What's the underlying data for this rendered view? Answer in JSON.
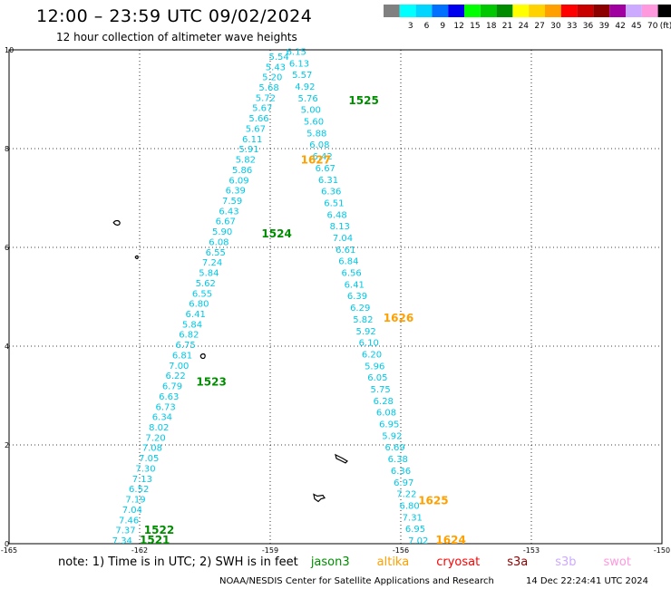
{
  "title": "12:00 – 23:59 UTC 09/02/2024",
  "subtitle": "12 hour collection of altimeter wave heights",
  "legend": {
    "swatches": [
      {
        "color": "#808080",
        "label": ""
      },
      {
        "color": "#00ffff",
        "label": "3"
      },
      {
        "color": "#00d5ff",
        "label": "6"
      },
      {
        "color": "#0070ff",
        "label": "9"
      },
      {
        "color": "#0000ee",
        "label": "12"
      },
      {
        "color": "#00ff00",
        "label": "15"
      },
      {
        "color": "#00c800",
        "label": "18"
      },
      {
        "color": "#008c00",
        "label": "21"
      },
      {
        "color": "#ffff00",
        "label": "24"
      },
      {
        "color": "#ffd200",
        "label": "27"
      },
      {
        "color": "#ffa000",
        "label": "30"
      },
      {
        "color": "#ff0000",
        "label": "33"
      },
      {
        "color": "#c80000",
        "label": "36"
      },
      {
        "color": "#8c0000",
        "label": "39"
      },
      {
        "color": "#a000a0",
        "label": "42"
      },
      {
        "color": "#ccaaff",
        "label": "45"
      },
      {
        "color": "#ff99dd",
        "label": "70"
      },
      {
        "color": "#000000",
        "label": "(ft)"
      }
    ]
  },
  "map": {
    "x_ticks": [
      {
        "v": -165,
        "label": "-165"
      },
      {
        "v": -162,
        "label": "-162"
      },
      {
        "v": -159,
        "label": "-159"
      },
      {
        "v": -156,
        "label": "-156"
      },
      {
        "v": -153,
        "label": "-153"
      },
      {
        "v": -150,
        "label": "-150"
      }
    ],
    "y_ticks": [
      {
        "v": 0,
        "label": "0"
      },
      {
        "v": 2,
        "label": "2"
      },
      {
        "v": 4,
        "label": "4"
      },
      {
        "v": 6,
        "label": "6"
      },
      {
        "v": 8,
        "label": "8"
      },
      {
        "v": 10,
        "label": "10"
      }
    ],
    "track_color": "#00c8e6",
    "west_track": {
      "lon_start": -162.4,
      "lon_end": -158.8,
      "values": [
        "7.34",
        "7.37",
        "7.46",
        "7.04",
        "7.19",
        "6.52",
        "7.13",
        "7.30",
        "7.05",
        "7.08",
        "7.20",
        "8.02",
        "6.34",
        "6.73",
        "6.63",
        "6.79",
        "6.22",
        "7.00",
        "6.81",
        "6.75",
        "6.82",
        "5.84",
        "6.41",
        "6.80",
        "6.55",
        "5.62",
        "5.84",
        "7.24",
        "6.55",
        "6.08",
        "5.90",
        "6.67",
        "6.43",
        "7.59",
        "6.39",
        "6.09",
        "5.86",
        "5.82",
        "5.91",
        "6.11",
        "5.67",
        "5.66",
        "5.67",
        "5.72",
        "5.68",
        "5.20",
        "5.43",
        "5.54"
      ]
    },
    "east_track": {
      "lon_start": -155.6,
      "lon_end": -158.4,
      "values": [
        "7.02",
        "6.95",
        "7.31",
        "6.80",
        "7.22",
        "6.97",
        "6.36",
        "6.38",
        "6.69",
        "5.92",
        "6.95",
        "6.08",
        "6.28",
        "5.75",
        "6.05",
        "5.96",
        "6.20",
        "6.10",
        "5.92",
        "5.82",
        "6.29",
        "6.39",
        "6.41",
        "6.56",
        "6.84",
        "6.61",
        "7.04",
        "8.13",
        "6.48",
        "6.51",
        "6.36",
        "6.31",
        "6.67",
        "6.42",
        "6.08",
        "5.88",
        "5.60",
        "5.00",
        "5.76",
        "4.92",
        "5.57",
        "6.13",
        "6.15"
      ]
    },
    "time_labels": [
      {
        "text": "1521",
        "lon": -162.0,
        "lat": 0.0,
        "color": "#008c00"
      },
      {
        "text": "1522",
        "lon": -161.9,
        "lat": 0.2,
        "color": "#008c00"
      },
      {
        "text": "1523",
        "lon": -160.7,
        "lat": 3.2,
        "color": "#008c00"
      },
      {
        "text": "1524",
        "lon": -159.2,
        "lat": 6.2,
        "color": "#008c00"
      },
      {
        "text": "1525",
        "lon": -157.2,
        "lat": 8.9,
        "color": "#008c00"
      },
      {
        "text": "1624",
        "lon": -155.2,
        "lat": 0.0,
        "color": "#ffa000"
      },
      {
        "text": "1625",
        "lon": -155.6,
        "lat": 0.8,
        "color": "#ffa000"
      },
      {
        "text": "1626",
        "lon": -156.4,
        "lat": 4.5,
        "color": "#ffa000"
      },
      {
        "text": "1627",
        "lon": -158.3,
        "lat": 7.7,
        "color": "#ffa000"
      }
    ]
  },
  "note": {
    "prefix": "note:  1) Time is in UTC; 2) SWH is in feet",
    "satellites": [
      {
        "name": "jason3",
        "color": "#008c00"
      },
      {
        "name": "altika",
        "color": "#ffa000"
      },
      {
        "name": "cryosat",
        "color": "#ff0000"
      },
      {
        "name": "s3a",
        "color": "#8c0000"
      },
      {
        "name": "s3b",
        "color": "#ccaaff"
      },
      {
        "name": "swot",
        "color": "#ff99dd"
      }
    ]
  },
  "credit": "NOAA/NESDIS Center for Satellite Applications and Research",
  "generated": "14 Dec 22:24:41 UTC 2024"
}
